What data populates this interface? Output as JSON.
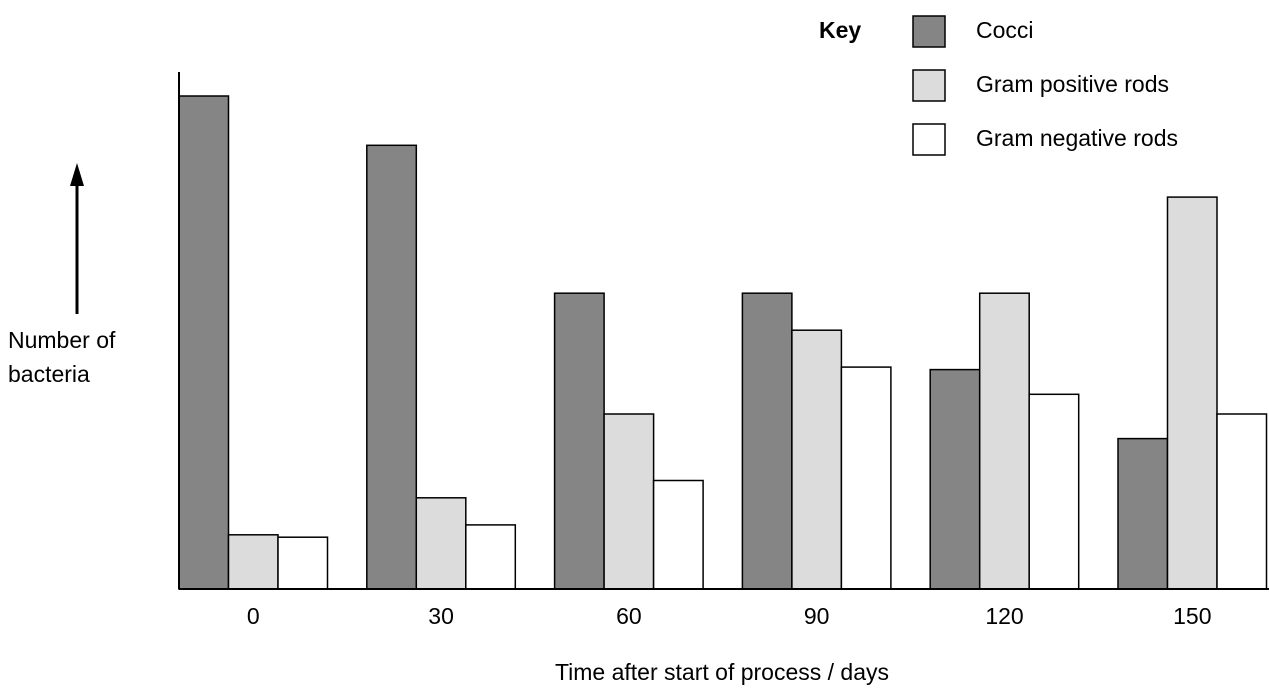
{
  "chart_data": {
    "type": "bar",
    "categories": [
      "0",
      "30",
      "60",
      "90",
      "120",
      "150"
    ],
    "series": [
      {
        "name": "Cocci",
        "color": "#858585",
        "values": [
          100,
          90,
          60,
          60,
          44.5,
          30.5
        ]
      },
      {
        "name": "Gram positive rods",
        "color": "#dcdcdc",
        "values": [
          11,
          18.5,
          35.5,
          52.5,
          60,
          79.5
        ]
      },
      {
        "name": "Gram negative rods",
        "color": "#ffffff",
        "values": [
          10.5,
          13,
          22,
          45,
          39.5,
          35.5
        ]
      }
    ],
    "xlabel": "Time after start of process / days",
    "ylabel_lines": [
      "Number of",
      "bacteria"
    ],
    "ylim": [
      0,
      100
    ],
    "legend_title": "Key",
    "legend_position": "top-right",
    "grid": false
  }
}
